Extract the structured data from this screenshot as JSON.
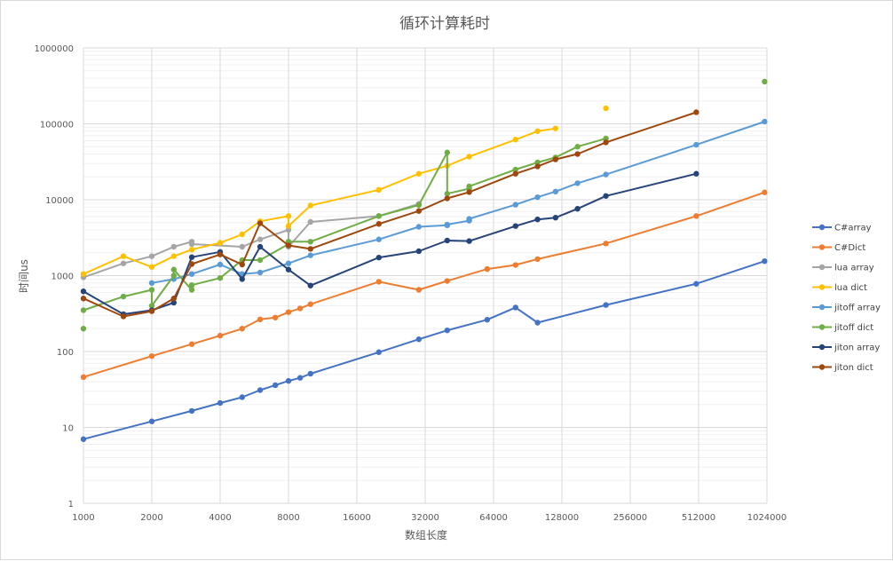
{
  "chart_data": {
    "type": "line",
    "title": "循环计算耗时",
    "xlabel": "数组长度",
    "ylabel": "时间us",
    "xscale": "log2",
    "yscale": "log10",
    "xlim": [
      1000,
      1024000
    ],
    "ylim": [
      1,
      1000000
    ],
    "xticks": [
      "1000",
      "2000",
      "4000",
      "8000",
      "16000",
      "32000",
      "64000",
      "128000",
      "256000",
      "512000",
      "1024000"
    ],
    "yticks": [
      "1",
      "10",
      "100",
      "1000",
      "10000",
      "100000",
      "1000000"
    ],
    "grid": true,
    "legend": "right",
    "series": [
      {
        "name": "C#array",
        "color": "#4472C4",
        "x": [
          1000,
          2000,
          3000,
          4000,
          5000,
          6000,
          7000,
          8000,
          9000,
          10000,
          20000,
          30000,
          40000,
          60000,
          80000,
          100000,
          200000,
          500000,
          1000000
        ],
        "y": [
          7,
          12,
          16.5,
          21,
          25,
          31,
          36,
          41,
          45,
          51,
          98,
          145,
          190,
          262,
          380,
          240,
          410,
          780,
          1550
        ]
      },
      {
        "name": "C#Dict",
        "color": "#ED7D31",
        "x": [
          1000,
          2000,
          3000,
          4000,
          5000,
          6000,
          7000,
          8000,
          9000,
          10000,
          20000,
          30000,
          40000,
          60000,
          80000,
          100000,
          200000,
          500000,
          1000000
        ],
        "y": [
          46,
          87,
          125,
          162,
          200,
          265,
          280,
          330,
          370,
          420,
          830,
          650,
          850,
          1220,
          1380,
          1650,
          2650,
          6100,
          12500
        ]
      },
      {
        "name": "lua array",
        "color": "#A5A5A5",
        "x": [
          1000,
          1500,
          2000,
          2500,
          3000,
          3000,
          5000,
          6000,
          8000,
          8000,
          10000,
          20000,
          30000
        ],
        "y": [
          950,
          1450,
          1800,
          2400,
          2800,
          2600,
          2400,
          3000,
          4000,
          2400,
          5100,
          6100,
          8800
        ]
      },
      {
        "name": "lua dict",
        "color": "#FFC000",
        "x": [
          1000,
          1500,
          2000,
          2500,
          3000,
          4000,
          5000,
          6000,
          8000,
          8000,
          10000,
          20000,
          30000,
          40000,
          50000,
          80000,
          100000,
          120000
        ],
        "y": [
          1050,
          1800,
          1300,
          1800,
          2200,
          2700,
          3500,
          5200,
          6100,
          4500,
          8400,
          13500,
          22000,
          28000,
          37000,
          62000,
          80000,
          87000
        ]
      },
      {
        "name": "jitoff array",
        "color": "#5B9BD5",
        "x": [
          2000,
          2500,
          3000,
          4000,
          5000,
          6000,
          8000,
          10000,
          20000,
          30000,
          40000,
          40000,
          50000,
          50000,
          80000,
          100000,
          120000,
          150000,
          200000,
          500000,
          1000000
        ],
        "y": [
          800,
          900,
          1050,
          1400,
          1050,
          1100,
          1450,
          1850,
          3000,
          4400,
          4600,
          4700,
          5300,
          5600,
          8600,
          10800,
          12800,
          16500,
          21500,
          53000,
          107000
        ]
      },
      {
        "name": "jitoff dict",
        "color": "#70AD47",
        "x": [
          1000,
          1500,
          2000,
          2000,
          2500,
          2500,
          3000,
          3000,
          4000,
          5000,
          6000,
          8000,
          8000,
          10000,
          20000,
          30000,
          40000,
          40000,
          50000,
          50000,
          80000,
          100000,
          120000,
          150000,
          200000
        ],
        "y": [
          350,
          530,
          650,
          400,
          1000,
          1200,
          650,
          750,
          930,
          1600,
          1600,
          2600,
          2800,
          2800,
          6100,
          8500,
          42000,
          12000,
          14000,
          15000,
          25000,
          31000,
          36000,
          50000,
          64000
        ]
      },
      {
        "name": "jiton array",
        "color": "#264478",
        "x": [
          1000,
          1500,
          2000,
          2500,
          3000,
          4000,
          5000,
          6000,
          8000,
          10000,
          20000,
          30000,
          40000,
          50000,
          80000,
          100000,
          120000,
          150000,
          200000,
          500000
        ],
        "y": [
          620,
          310,
          350,
          440,
          1750,
          2050,
          900,
          2400,
          1200,
          740,
          1730,
          2100,
          2900,
          2850,
          4500,
          5500,
          5800,
          7600,
          11200,
          22000
        ]
      },
      {
        "name": "jiton dict",
        "color": "#9E480E",
        "x": [
          1000,
          1500,
          2000,
          2500,
          3000,
          4000,
          5000,
          6000,
          8000,
          10000,
          20000,
          30000,
          40000,
          50000,
          80000,
          100000,
          120000,
          150000,
          200000,
          500000
        ],
        "y": [
          500,
          290,
          340,
          500,
          1420,
          1900,
          1400,
          4900,
          2500,
          2250,
          4800,
          7100,
          10400,
          12600,
          22000,
          27500,
          34000,
          40000,
          57000,
          142000
        ]
      }
    ],
    "isolated_points": [
      {
        "series": "jitoff dict",
        "x": 1000,
        "y": 200
      },
      {
        "series": "lua dict",
        "x": 200000,
        "y": 160000
      },
      {
        "series": "jitoff dict",
        "x": 1000000,
        "y": 360000
      }
    ]
  }
}
